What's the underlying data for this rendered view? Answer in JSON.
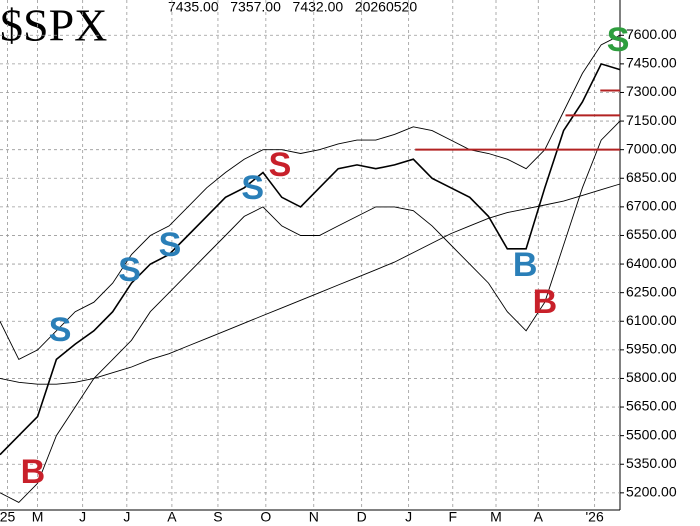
{
  "chart_data": {
    "type": "line",
    "title": "$SPX",
    "subtitle": "7435.00   7357.00   7432.00   20260520",
    "x": [
      0,
      2,
      4,
      6,
      8,
      10,
      12,
      14,
      16,
      18,
      20,
      22,
      24,
      26,
      28,
      30,
      32,
      34,
      36,
      38,
      40,
      42,
      44,
      46,
      48,
      50,
      52,
      54,
      56,
      58,
      60,
      62,
      64,
      66
    ],
    "xlim": [
      0,
      66
    ],
    "xticks": [
      {
        "value": 0.8,
        "label": "25"
      },
      {
        "value": 4,
        "label": "M"
      },
      {
        "value": 8.8,
        "label": "J"
      },
      {
        "value": 13.5,
        "label": "J"
      },
      {
        "value": 18.3,
        "label": "A"
      },
      {
        "value": 23.2,
        "label": "S"
      },
      {
        "value": 28.3,
        "label": "O"
      },
      {
        "value": 33.4,
        "label": "N"
      },
      {
        "value": 38.5,
        "label": "D"
      },
      {
        "value": 43.5,
        "label": "J"
      },
      {
        "value": 48.2,
        "label": "F"
      },
      {
        "value": 52.8,
        "label": "M"
      },
      {
        "value": 57.3,
        "label": "A"
      },
      {
        "value": 63.3,
        "label": "'26"
      }
    ],
    "ylim": [
      5110,
      7785
    ],
    "yticks": [
      {
        "value": 5200,
        "label": "5200.00"
      },
      {
        "value": 5350,
        "label": "5350.00"
      },
      {
        "value": 5500,
        "label": "5500.00"
      },
      {
        "value": 5650,
        "label": "5650.00"
      },
      {
        "value": 5800,
        "label": "5800.00"
      },
      {
        "value": 5950,
        "label": "5950.00"
      },
      {
        "value": 6100,
        "label": "6100.00"
      },
      {
        "value": 6250,
        "label": "6250.00"
      },
      {
        "value": 6400,
        "label": "6400.00"
      },
      {
        "value": 6550,
        "label": "6550.00"
      },
      {
        "value": 6700,
        "label": "6700.00"
      },
      {
        "value": 6850,
        "label": "6850.00"
      },
      {
        "value": 7000,
        "label": "7000.00"
      },
      {
        "value": 7150,
        "label": "7150.00"
      },
      {
        "value": 7300,
        "label": "7300.00"
      },
      {
        "value": 7450,
        "label": "7450.00"
      },
      {
        "value": 7600,
        "label": "7600.00"
      }
    ],
    "grid": true,
    "series": [
      {
        "color": "#000000",
        "values": [
          5400,
          5500,
          5600,
          5900,
          5980,
          6050,
          6150,
          6300,
          6400,
          6450,
          6550,
          6650,
          6750,
          6800,
          6880,
          6750,
          6700,
          6800,
          6900,
          6920,
          6900,
          6920,
          6950,
          6850,
          6800,
          6750,
          6650,
          6480,
          6480,
          6800,
          7100,
          7250,
          7450,
          7420
        ]
      },
      {
        "color": "#000000",
        "values": [
          6100,
          5900,
          5950,
          6050,
          6150,
          6200,
          6300,
          6450,
          6550,
          6600,
          6700,
          6800,
          6880,
          6950,
          7000,
          7000,
          6980,
          7000,
          7030,
          7050,
          7050,
          7080,
          7120,
          7100,
          7050,
          7000,
          6980,
          6950,
          6900,
          7000,
          7200,
          7400,
          7550,
          7600
        ]
      },
      {
        "color": "#000000",
        "values": [
          5200,
          5150,
          5250,
          5500,
          5650,
          5800,
          5900,
          6000,
          6150,
          6250,
          6350,
          6450,
          6550,
          6650,
          6700,
          6600,
          6550,
          6550,
          6600,
          6650,
          6700,
          6700,
          6680,
          6600,
          6500,
          6400,
          6300,
          6150,
          6050,
          6200,
          6500,
          6800,
          7050,
          7150
        ]
      },
      {
        "color": "#000000",
        "values": [
          5800,
          5780,
          5770,
          5770,
          5780,
          5800,
          5830,
          5860,
          5900,
          5930,
          5970,
          6010,
          6050,
          6090,
          6130,
          6170,
          6210,
          6250,
          6290,
          6330,
          6370,
          6410,
          6460,
          6510,
          6560,
          6600,
          6640,
          6670,
          6690,
          6710,
          6730,
          6760,
          6790,
          6820
        ]
      }
    ],
    "reference_lines": [
      {
        "value": 7000,
        "x": [
          44.2,
          66
        ],
        "color": "#b22222"
      },
      {
        "value": 7180,
        "x": [
          60.2,
          66
        ],
        "color": "#b22222"
      },
      {
        "value": 7310,
        "x": [
          63.9,
          66
        ],
        "color": "#b22222"
      }
    ],
    "signals": [
      {
        "label": "B",
        "x": 3.5,
        "y": 5310,
        "color": "#c8202a"
      },
      {
        "label": "S",
        "x": 6.4,
        "y": 6054,
        "color": "#2a7fb8"
      },
      {
        "label": "S",
        "x": 13.8,
        "y": 6369,
        "color": "#2a7fb8"
      },
      {
        "label": "S",
        "x": 18.1,
        "y": 6500,
        "color": "#2a7fb8"
      },
      {
        "label": "S",
        "x": 26.9,
        "y": 6798,
        "color": "#2a7fb8"
      },
      {
        "label": "S",
        "x": 29.8,
        "y": 6919,
        "color": "#c8202a"
      },
      {
        "label": "B",
        "x": 55.9,
        "y": 6395,
        "color": "#2a7fb8"
      },
      {
        "label": "B",
        "x": 58,
        "y": 6201,
        "color": "#c8202a"
      },
      {
        "label": "S",
        "x": 65.8,
        "y": 7574,
        "color": "#2e9e3e"
      }
    ]
  }
}
